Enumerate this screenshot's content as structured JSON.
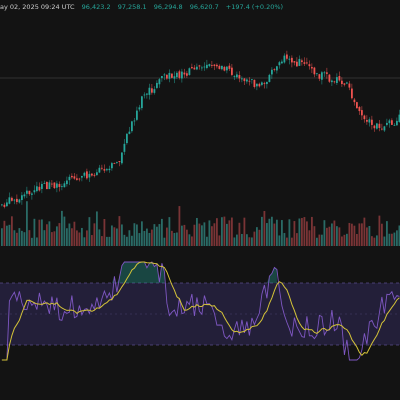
{
  "header": {
    "datetime": "ay 02, 2025 09:24 UTC",
    "open": "96,423.2",
    "high": "97,258.1",
    "low": "96,294.8",
    "close": "96,620.7",
    "change": "+197.4 (+0.20%)"
  },
  "colors": {
    "background": "#131313",
    "up": "#26a69a",
    "down": "#ef5350",
    "volume_up": "#2a6b66",
    "volume_down": "#7a3436",
    "rsi_line": "#7e57c2",
    "rsi_ma": "#d4c338",
    "rsi_band_fill": "#2a2447",
    "band_border": "#5a4e8a",
    "price_line": "#3c3c3c"
  }
}
